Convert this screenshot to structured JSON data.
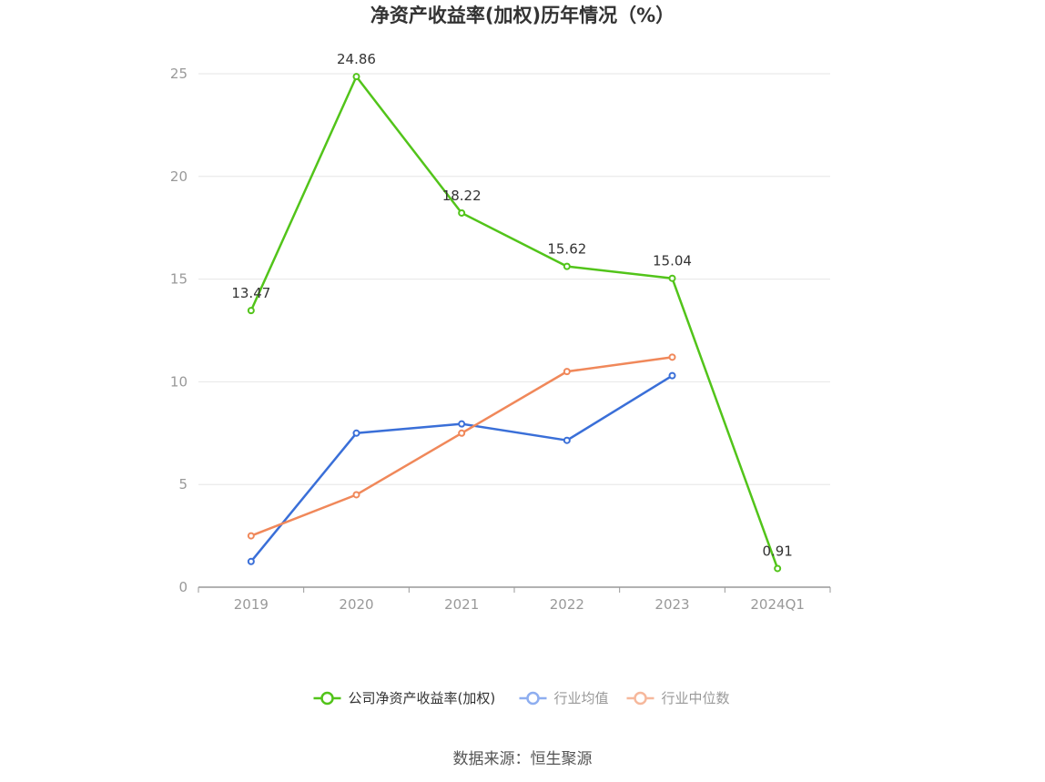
{
  "chart_data": {
    "type": "line",
    "title": "净资产收益率(加权)历年情况（%）",
    "categories": [
      "2019",
      "2020",
      "2021",
      "2022",
      "2023",
      "2024Q1"
    ],
    "yticks": [
      "0",
      "5",
      "10",
      "15",
      "20",
      "25"
    ],
    "ylim": [
      0,
      25
    ],
    "grid": true,
    "legend_position": "bottom",
    "series": [
      {
        "name": "公司净资产收益率(加权)",
        "color": "#52c41a",
        "labels": true,
        "values": [
          13.47,
          24.86,
          18.22,
          15.62,
          15.04,
          0.91
        ],
        "value_labels": [
          "13.47",
          "24.86",
          "18.22",
          "15.62",
          "15.04",
          "0.91"
        ]
      },
      {
        "name": "行业均值",
        "color": "#3a6fd8",
        "legend_color": "#8eaef0",
        "labels": false,
        "values": [
          1.25,
          7.5,
          7.95,
          7.15,
          10.3,
          null
        ]
      },
      {
        "name": "行业中位数",
        "color": "#f0885a",
        "legend_color": "#f6b89c",
        "labels": false,
        "values": [
          2.5,
          4.5,
          7.5,
          10.5,
          11.2,
          null
        ]
      }
    ],
    "source": "数据来源：恒生聚源"
  }
}
